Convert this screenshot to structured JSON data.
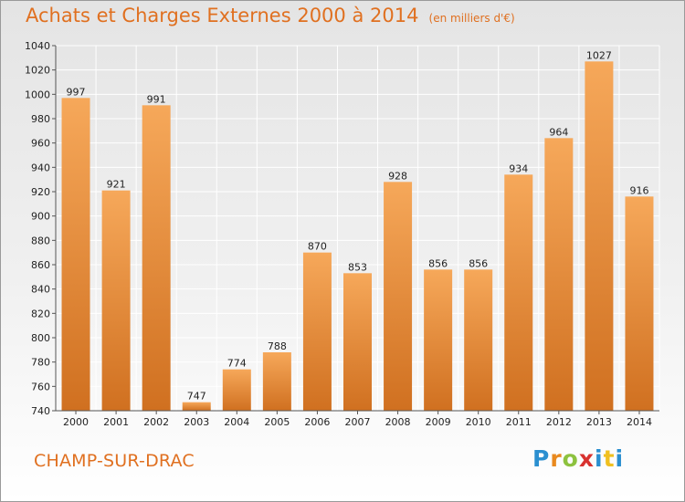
{
  "header": {
    "title": "Achats et Charges Externes 2000 à 2014",
    "units": "(en milliers d'€)"
  },
  "footer": {
    "commune": "CHAMP-SUR-DRAC",
    "logo": "Proxiti"
  },
  "colors": {
    "title": "#e07020",
    "bar_light": "#f6a85a",
    "bar_dark": "#d07020",
    "logo_letters": [
      "#2b8fd0",
      "#e98a1f",
      "#8dc23f",
      "#d8322f",
      "#2b8fd0",
      "#f0c020",
      "#2b8fd0"
    ]
  },
  "chart_data": {
    "type": "bar",
    "title": "Achats et Charges Externes 2000 à 2014",
    "subtitle": "(en milliers d'€)",
    "categories": [
      "2000",
      "2001",
      "2002",
      "2003",
      "2004",
      "2005",
      "2006",
      "2007",
      "2008",
      "2009",
      "2010",
      "2011",
      "2012",
      "2013",
      "2014"
    ],
    "values": [
      997,
      921,
      991,
      747,
      774,
      788,
      870,
      853,
      928,
      856,
      856,
      934,
      964,
      1027,
      916
    ],
    "ylim": [
      740,
      1040
    ],
    "yticks": [
      740,
      760,
      780,
      800,
      820,
      840,
      860,
      880,
      900,
      920,
      940,
      960,
      980,
      1000,
      1020,
      1040
    ],
    "grid": true
  }
}
